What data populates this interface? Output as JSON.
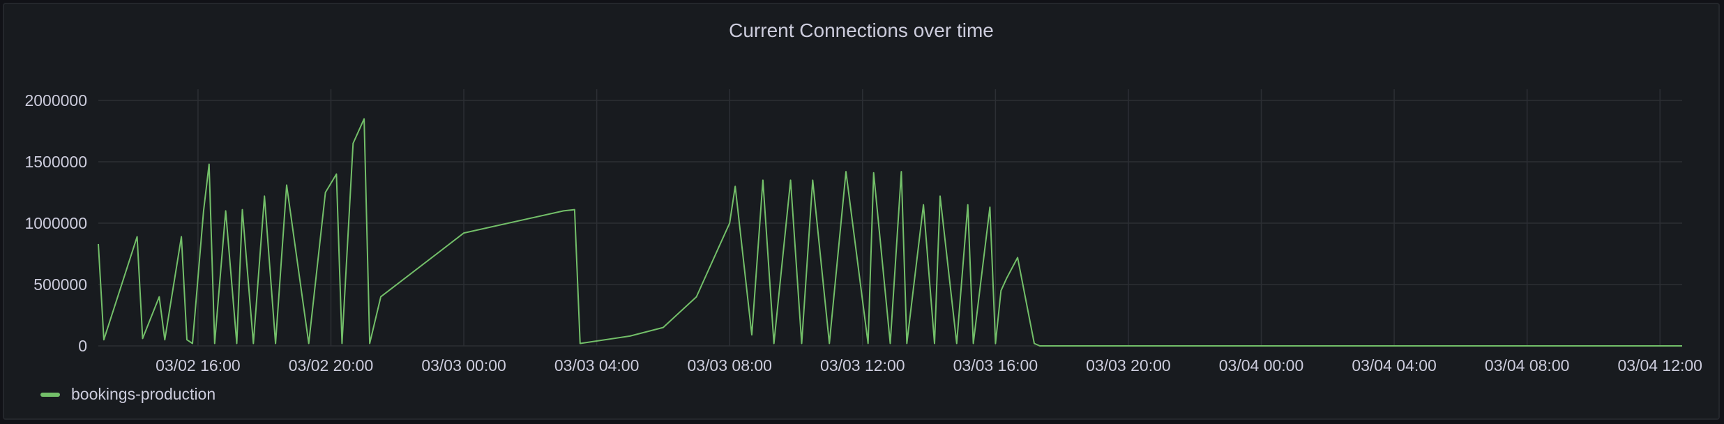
{
  "chart_data": {
    "type": "line",
    "title": "Current Connections over time",
    "xlabel": "",
    "ylabel": "",
    "x_range": [
      "03/02 13:00",
      "03/04 12:40"
    ],
    "ylim": [
      0,
      2000000
    ],
    "y_ticks": [
      "0",
      "500000",
      "1000000",
      "1500000",
      "2000000"
    ],
    "x_ticks": [
      "03/02 16:00",
      "03/02 20:00",
      "03/03 00:00",
      "03/03 04:00",
      "03/03 08:00",
      "03/03 12:00",
      "03/03 16:00",
      "03/03 20:00",
      "03/04 00:00",
      "03/04 04:00",
      "03/04 08:00",
      "03/04 12:00"
    ],
    "grid": true,
    "legend_position": "bottom-left",
    "series": [
      {
        "name": "bookings-production",
        "color": "#73bf69",
        "x": [
          "03/02 13:00",
          "03/02 13:10",
          "03/02 14:10",
          "03/02 14:20",
          "03/02 14:50",
          "03/02 15:00",
          "03/02 15:30",
          "03/02 15:40",
          "03/02 15:50",
          "03/02 16:10",
          "03/02 16:20",
          "03/02 16:30",
          "03/02 16:50",
          "03/02 17:10",
          "03/02 17:20",
          "03/02 17:40",
          "03/02 18:00",
          "03/02 18:20",
          "03/02 18:40",
          "03/02 19:20",
          "03/02 19:50",
          "03/02 20:10",
          "03/02 20:20",
          "03/02 20:40",
          "03/02 21:00",
          "03/02 21:10",
          "03/02 21:30",
          "03/03 00:00",
          "03/03 03:00",
          "03/03 03:20",
          "03/03 03:30",
          "03/03 05:00",
          "03/03 06:00",
          "03/03 07:00",
          "03/03 07:40",
          "03/03 08:00",
          "03/03 08:10",
          "03/03 08:40",
          "03/03 09:00",
          "03/03 09:20",
          "03/03 09:50",
          "03/03 10:10",
          "03/03 10:30",
          "03/03 11:00",
          "03/03 11:30",
          "03/03 12:10",
          "03/03 12:20",
          "03/03 12:50",
          "03/03 13:10",
          "03/03 13:20",
          "03/03 13:50",
          "03/03 14:10",
          "03/03 14:20",
          "03/03 14:50",
          "03/03 15:10",
          "03/03 15:20",
          "03/03 15:50",
          "03/03 16:00",
          "03/03 16:10",
          "03/03 16:20",
          "03/03 16:40",
          "03/03 17:10",
          "03/03 17:20",
          "03/03 17:40",
          "03/03 18:00",
          "03/03 18:50",
          "03/03 19:00",
          "03/03 19:10",
          "03/04 12:40"
        ],
        "values": [
          830000,
          50000,
          890000,
          60000,
          400000,
          50000,
          890000,
          50000,
          20000,
          1100000,
          1480000,
          20000,
          1100000,
          20000,
          1110000,
          20000,
          1220000,
          20000,
          1310000,
          20000,
          1250000,
          1400000,
          20000,
          1650000,
          1850000,
          20000,
          400000,
          920000,
          1100000,
          1110000,
          20000,
          80000,
          150000,
          400000,
          800000,
          1000000,
          1300000,
          90000,
          1350000,
          20000,
          1350000,
          20000,
          1350000,
          20000,
          1420000,
          20000,
          1410000,
          20000,
          1420000,
          20000,
          1150000,
          20000,
          1220000,
          20000,
          1150000,
          20000,
          1130000,
          20000,
          450000,
          550000,
          720000,
          20000,
          0,
          0,
          0,
          0,
          0,
          0,
          0
        ]
      }
    ]
  }
}
